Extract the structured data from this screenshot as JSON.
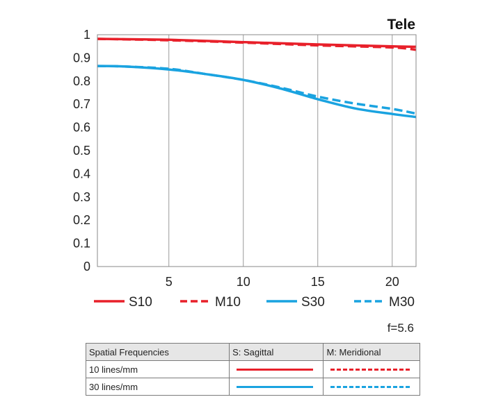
{
  "chart_data": {
    "type": "line",
    "title": "Tele",
    "aperture_note": "f=5.6",
    "xlim": [
      0.2,
      21.6
    ],
    "ylim": [
      0,
      1
    ],
    "x_ticks": [
      "5",
      "10",
      "15",
      "20"
    ],
    "x_tick_values": [
      5,
      10,
      15,
      20
    ],
    "y_ticks": [
      "0",
      "0.1",
      "0.2",
      "0.3",
      "0.4",
      "0.5",
      "0.6",
      "0.7",
      "0.8",
      "0.9",
      "1"
    ],
    "y_tick_values": [
      0,
      0.1,
      0.2,
      0.3,
      0.4,
      0.5,
      0.6,
      0.7,
      0.8,
      0.9,
      1
    ],
    "grid": "vertical",
    "legend_position": "bottom",
    "series": [
      {
        "name": "S10",
        "color": "#e8202a",
        "dash": false,
        "x": [
          0.2,
          5,
          10,
          15,
          20,
          21.6
        ],
        "y": [
          0.982,
          0.978,
          0.968,
          0.958,
          0.95,
          0.948
        ]
      },
      {
        "name": "M10",
        "color": "#e8202a",
        "dash": true,
        "x": [
          0.2,
          5,
          10,
          15,
          20,
          21.6
        ],
        "y": [
          0.982,
          0.976,
          0.966,
          0.954,
          0.945,
          0.935
        ]
      },
      {
        "name": "S30",
        "color": "#1aa3e0",
        "dash": false,
        "x": [
          0.2,
          2,
          5,
          7.5,
          10,
          12.5,
          15,
          17.5,
          20,
          21.6
        ],
        "y": [
          0.865,
          0.863,
          0.85,
          0.83,
          0.805,
          0.768,
          0.722,
          0.682,
          0.658,
          0.645
        ]
      },
      {
        "name": "M30",
        "color": "#1aa3e0",
        "dash": true,
        "x": [
          0.2,
          2,
          5,
          7.5,
          10,
          12.5,
          15,
          17.5,
          20,
          21.6
        ],
        "y": [
          0.865,
          0.863,
          0.853,
          0.83,
          0.805,
          0.772,
          0.733,
          0.703,
          0.68,
          0.66
        ]
      }
    ]
  },
  "table": {
    "headers": [
      "Spatial Frequencies",
      "S: Sagittal",
      "M: Meridional"
    ],
    "rows": [
      {
        "label": "10 lines/mm",
        "color": "#e8202a"
      },
      {
        "label": "30 lines/mm",
        "color": "#1aa3e0"
      }
    ]
  }
}
